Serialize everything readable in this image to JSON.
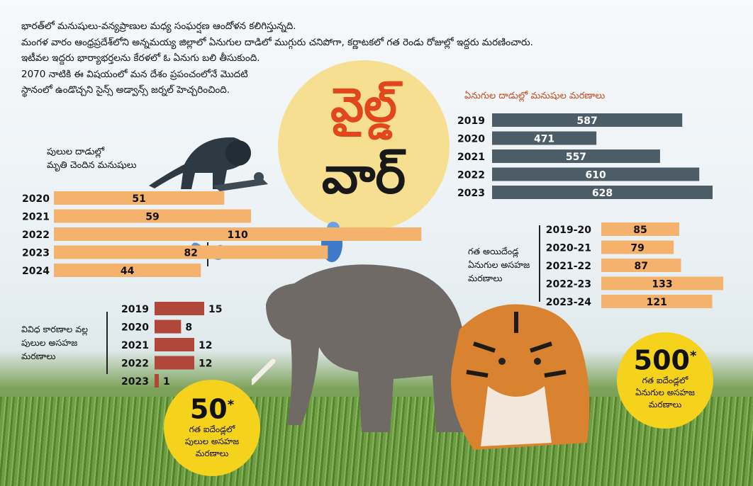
{
  "intro_lines": [
    "భారత్‌లో మనుషులు-వన్యప్రాణుల మధ్య సంఘర్షణ ఆందోళన కలిగిస్తున్నది.",
    "మంగళ వారం ఆంధ్రప్రదేశ్‌లోని అన్నమయ్య జిల్లాలో ఏనుగుల దాడిలో ముగ్గురు చనిపోగా, కర్ణాటకలో గత రెండు రోజుల్లో ఇద్దరు మరణించారు.",
    "ఇటీవల ఇద్దరు భార్యాభర్తలను కేరళలో ఓ ఏనుగు బలి తీసుకుంది.",
    "2070 నాటికి ఈ విషయంలో మన దేశం ప్రపంచంలోనే మొదటి",
    "స్థానంలో ఉండొచ్చని సైన్స్ అడ్వాన్స్ జర్నల్ హెచ్చరించింది."
  ],
  "title": {
    "line1": "వైల్డ్",
    "line2": "వార్"
  },
  "colors": {
    "orange_bar": "#f4b26c",
    "slate_bar": "#4c5d68",
    "red_bar": "#b0473a",
    "badge": "#f5d21c",
    "accent_text": "#c8491a"
  },
  "icons": [
    "lion-attack-illustration",
    "butterfly-icon",
    "parrot-icon",
    "elephant-illustration",
    "tiger-illustration"
  ],
  "chart_data": [
    {
      "type": "bar",
      "title": "పులుల దాడుల్లో మృతి చెందిన మనుషులు",
      "categories": [
        "2020",
        "2021",
        "2022",
        "2023",
        "2024"
      ],
      "values": [
        51,
        59,
        110,
        82,
        44
      ]
    },
    {
      "type": "bar",
      "title": "ఏనుగుల దాడుల్లో మనుషుల మరణాలు",
      "categories": [
        "2019",
        "2020",
        "2021",
        "2022",
        "2023"
      ],
      "values": [
        587,
        471,
        557,
        610,
        628
      ]
    },
    {
      "type": "bar",
      "title": "గత అయిదేండ్ల ఏనుగుల అసహజ మరణాలు",
      "categories": [
        "2019-20",
        "2020-21",
        "2021-22",
        "2022-23",
        "2023-24"
      ],
      "values": [
        85,
        79,
        87,
        133,
        121
      ]
    },
    {
      "type": "bar",
      "title": "వివిధ కారణాల వల్ల పులుల అసహజ మరణాలు",
      "categories": [
        "2019",
        "2020",
        "2021",
        "2022",
        "2023"
      ],
      "values": [
        15,
        8,
        12,
        12,
        1
      ]
    }
  ],
  "headings": {
    "tiger_attacks": [
      "పులుల దాడుల్లో",
      "మృతి చెందిన మనుషులు"
    ],
    "elephant_attacks": "ఏనుగుల దాడుల్లో మనుషుల మరణాలు",
    "elephant_deaths": [
      "గత అయిదేండ్ల",
      "ఏనుగుల అసహజ",
      "మరణాలు"
    ],
    "tiger_deaths": [
      "వివిధ కారణాల వల్ల",
      "పులుల అసహజ",
      "మరణాలు"
    ]
  },
  "badges": {
    "tiger": {
      "number": "50",
      "mark": "*",
      "lines": [
        "గత ఐదేండ్లలో",
        "పులుల అసహజ",
        "మరణాలు"
      ]
    },
    "elephant": {
      "number": "500",
      "mark": "*",
      "lines": [
        "గత ఐదేండ్లలో",
        "ఏనుగుల అసహజ",
        "మరణాలు"
      ]
    }
  }
}
